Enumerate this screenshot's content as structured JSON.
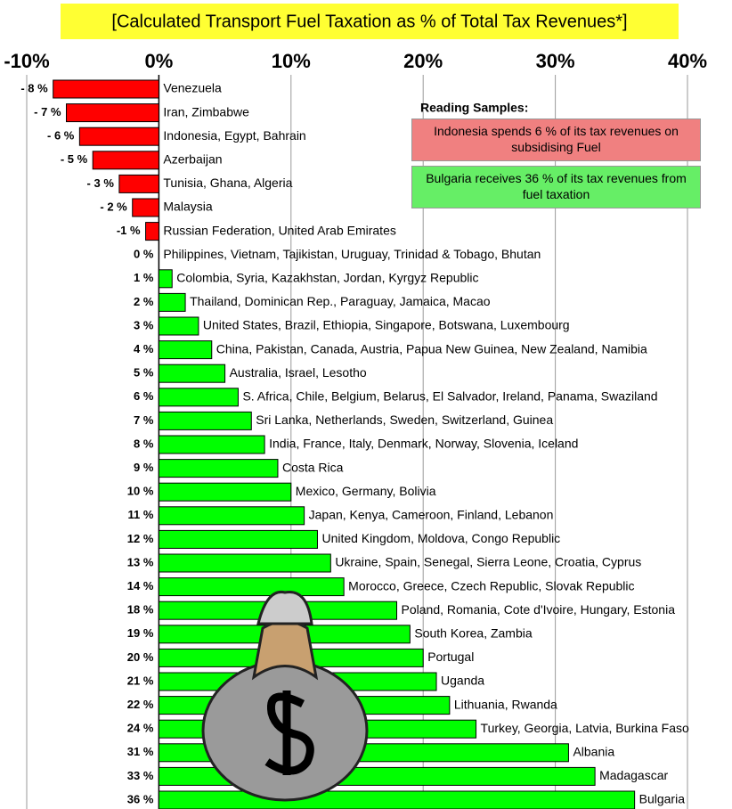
{
  "chart_data": {
    "type": "bar",
    "orientation": "horizontal",
    "title": "[Calculated Transport Fuel Taxation as % of Total Tax Revenues*]",
    "categories": [
      "Venezuela",
      "Iran, Zimbabwe",
      "Indonesia, Egypt, Bahrain",
      "Azerbaijan",
      "Tunisia, Ghana, Algeria",
      "Malaysia",
      "Russian Federation, United Arab Emirates",
      "Philippines, Vietnam, Tajikistan, Uruguay, Trinidad & Tobago, Bhutan",
      "Colombia, Syria, Kazakhstan, Jordan, Kyrgyz Republic",
      "Thailand, Dominican Rep., Paraguay, Jamaica, Macao",
      "United States, Brazil, Ethiopia, Singapore, Botswana, Luxembourg",
      "China, Pakistan, Canada, Austria, Papua New Guinea, New Zealand, Namibia",
      "Australia, Israel, Lesotho",
      "S. Africa, Chile, Belgium, Belarus, El Salvador, Ireland, Panama, Swaziland",
      "Sri Lanka, Netherlands, Sweden, Switzerland, Guinea",
      "India, France, Italy, Denmark, Norway, Slovenia, Iceland",
      "Costa Rica",
      "Mexico, Germany, Bolivia",
      "Japan, Kenya, Cameroon, Finland, Lebanon",
      "United Kingdom, Moldova, Congo Republic",
      "Ukraine, Spain, Senegal, Sierra Leone, Croatia, Cyprus",
      "Morocco, Greece, Czech Republic, Slovak Republic",
      "Poland, Romania, Cote d'Ivoire, Hungary, Estonia",
      "South Korea, Zambia",
      "Portugal",
      "Uganda",
      "Lithuania, Rwanda",
      "Turkey, Georgia, Latvia, Burkina Faso",
      "Albania",
      "Madagascar",
      "Bulgaria"
    ],
    "values": [
      -8,
      -7,
      -6,
      -5,
      -3,
      -2,
      -1,
      0,
      1,
      2,
      3,
      4,
      5,
      6,
      7,
      8,
      9,
      10,
      11,
      12,
      13,
      14,
      18,
      19,
      20,
      21,
      22,
      24,
      31,
      33,
      36
    ],
    "value_labels": [
      "- 8 %",
      "- 7 %",
      "- 6 %",
      "- 5 %",
      "- 3 %",
      "- 2 %",
      "-1 %",
      "0 %",
      "1 %",
      "2 %",
      "3 %",
      "4 %",
      "5 %",
      "6 %",
      "7 %",
      "8 %",
      "9 %",
      "10 %",
      "11 %",
      "12 %",
      "13 %",
      "14 %",
      "18 %",
      "19 %",
      "20 %",
      "21 %",
      "22 %",
      "24 %",
      "31 %",
      "33 %",
      "36 %"
    ],
    "negative_color": "#ff0000",
    "positive_color": "#00ff00",
    "xlim": [
      -10,
      40
    ],
    "xticks": [
      {
        "value": -10,
        "label": "-10%"
      },
      {
        "value": 0,
        "label": "0%"
      },
      {
        "value": 10,
        "label": "10%"
      },
      {
        "value": 20,
        "label": "20%"
      },
      {
        "value": 30,
        "label": "30%"
      },
      {
        "value": 40,
        "label": "40%"
      }
    ],
    "grid": true,
    "annotations": {
      "heading": "Reading Samples:",
      "negative_sample": "Indonesia spends 6 % of its tax revenues on subsidising Fuel",
      "positive_sample": "Bulgaria receives 36 % of its tax revenues from fuel taxation"
    }
  }
}
